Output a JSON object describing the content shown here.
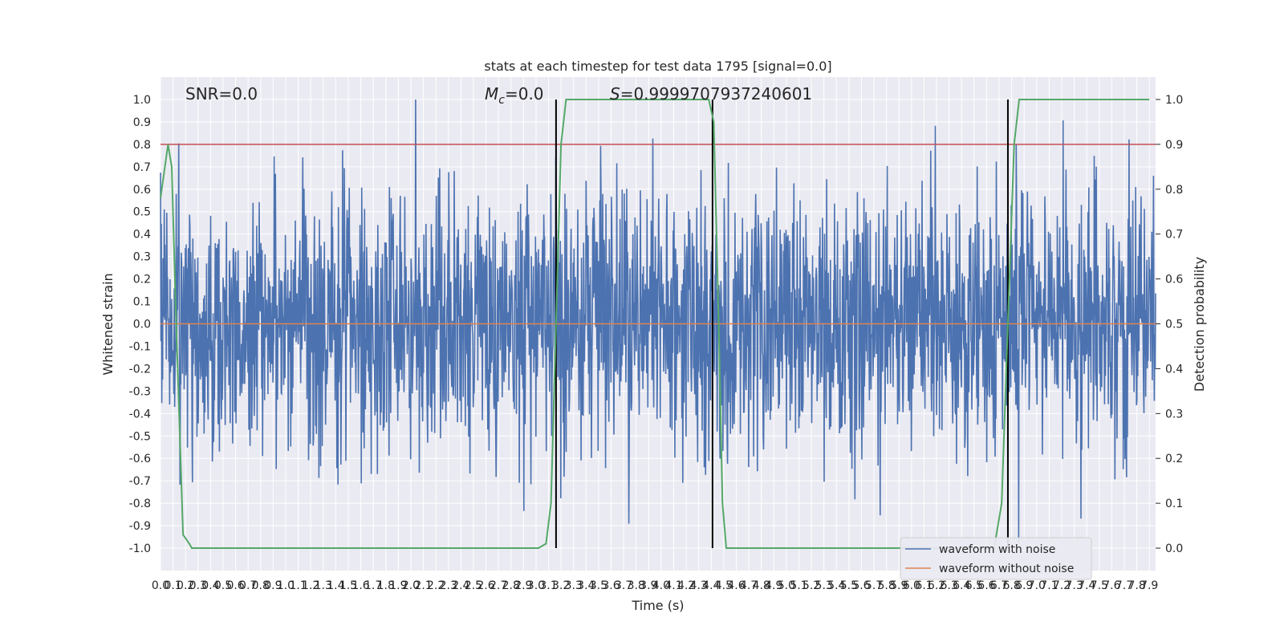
{
  "chart_data": {
    "type": "line",
    "title": "stats at each timestep for test data 1795 [signal=0.0]",
    "xlabel": "Time (s)",
    "ylabel": "Whitened strain",
    "y2label": "Detection probability",
    "xlim": [
      0.0,
      7.95
    ],
    "ylim": [
      -1.1,
      1.1
    ],
    "y2lim": [
      -0.05,
      1.05
    ],
    "x_ticks": [
      "0.0",
      "0.1",
      "0.2",
      "0.3",
      "0.4",
      "0.5",
      "0.6",
      "0.7",
      "0.8",
      "0.9",
      "1.0",
      "1.1",
      "1.2",
      "1.3",
      "1.4",
      "1.5",
      "1.6",
      "1.7",
      "1.8",
      "1.9",
      "2.0",
      "2.1",
      "2.2",
      "2.3",
      "2.4",
      "2.5",
      "2.6",
      "2.7",
      "2.8",
      "2.9",
      "3.0",
      "3.1",
      "3.2",
      "3.3",
      "3.4",
      "3.5",
      "3.6",
      "3.7",
      "3.8",
      "3.9",
      "4.0",
      "4.1",
      "4.2",
      "4.3",
      "4.4",
      "4.5",
      "4.6",
      "4.7",
      "4.8",
      "4.9",
      "5.0",
      "5.1",
      "5.2",
      "5.3",
      "5.4",
      "5.5",
      "5.6",
      "5.7",
      "5.8",
      "5.9",
      "6.0",
      "6.1",
      "6.2",
      "6.3",
      "6.4",
      "6.5",
      "6.6",
      "6.7",
      "6.8",
      "6.9",
      "7.0",
      "7.1",
      "7.2",
      "7.3",
      "7.4",
      "7.5",
      "7.6",
      "7.7",
      "7.8",
      "7.9"
    ],
    "y_ticks": [
      "1.0",
      "0.9",
      "0.8",
      "0.7",
      "0.6",
      "0.5",
      "0.4",
      "0.3",
      "0.2",
      "0.1",
      "0.0",
      "-0.1",
      "-0.2",
      "-0.3",
      "-0.4",
      "-0.5",
      "-0.6",
      "-0.7",
      "-0.8",
      "-0.9",
      "-1.0"
    ],
    "y2_ticks": [
      "1.0",
      "0.9",
      "0.8",
      "0.7",
      "0.6",
      "0.5",
      "0.4",
      "0.3",
      "0.2",
      "0.1",
      "0.0"
    ],
    "threshold": 0.9,
    "vertical_lines": [
      3.16,
      4.41,
      6.77
    ],
    "annotations": {
      "snr": "SNR=0.0",
      "mc_symbol": "M",
      "mc_sub": "c",
      "mc_value": "=0.0",
      "s_symbol": "S",
      "s_value": "=0.9999707937240601"
    },
    "series": [
      {
        "name": "waveform with noise",
        "color": "#4c72b0",
        "noise_envelope": 0.3,
        "noise_amplitude_max": 1.0
      },
      {
        "name": "waveform without noise",
        "color": "#dd8452",
        "values_constant": 0.0
      },
      {
        "name": "detection probability",
        "color": "#55a868",
        "axis": "y2",
        "x": [
          0.0,
          0.06,
          0.09,
          0.12,
          0.18,
          0.23,
          0.25,
          3.02,
          3.08,
          3.12,
          3.16,
          3.2,
          3.24,
          4.38,
          4.42,
          4.46,
          4.49,
          4.52,
          6.66,
          6.72,
          6.77,
          6.82,
          6.86,
          7.9
        ],
        "values": [
          0.78,
          0.9,
          0.85,
          0.55,
          0.03,
          0.01,
          0.0,
          0.0,
          0.01,
          0.1,
          0.5,
          0.9,
          1.0,
          1.0,
          0.95,
          0.5,
          0.1,
          0.0,
          0.0,
          0.1,
          0.5,
          0.9,
          1.0,
          1.0
        ]
      },
      {
        "name": "threshold",
        "color": "#c44e52",
        "axis": "y2",
        "values_constant": 0.9
      }
    ],
    "legend": {
      "location": "lower-right",
      "entries": [
        "waveform with noise",
        "waveform without noise"
      ]
    },
    "grid": true
  },
  "colors": {
    "background": "#eaeaf2",
    "grid": "#ffffff",
    "vline": "#000000"
  }
}
